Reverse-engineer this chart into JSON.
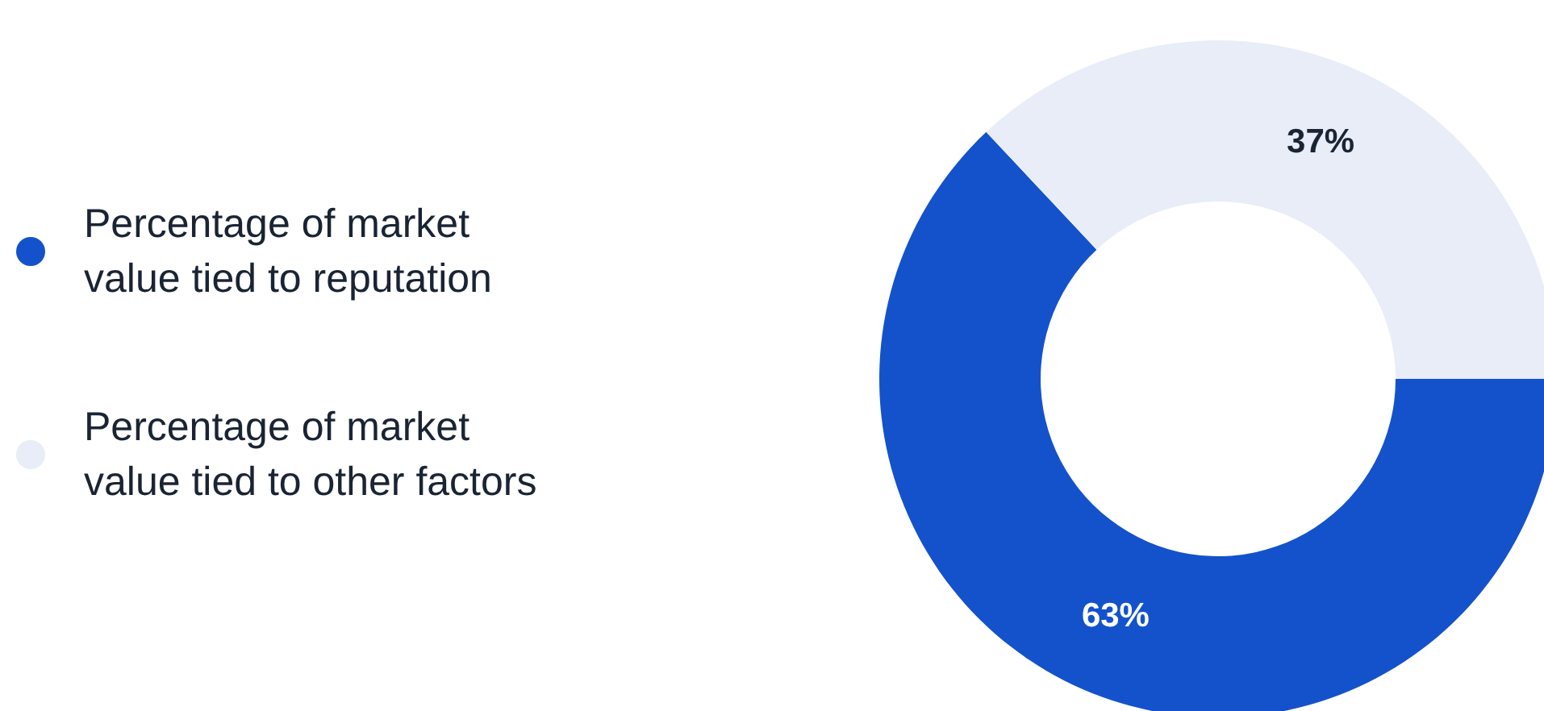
{
  "chart_data": {
    "type": "donut",
    "categories": [
      "Percentage of market value tied to reputation",
      "Percentage of market value tied to other factors"
    ],
    "values": [
      63,
      37
    ],
    "colors": [
      "#1452cc",
      "#e8edf8"
    ],
    "value_labels": [
      "63%",
      "37%"
    ],
    "legend": "left"
  }
}
